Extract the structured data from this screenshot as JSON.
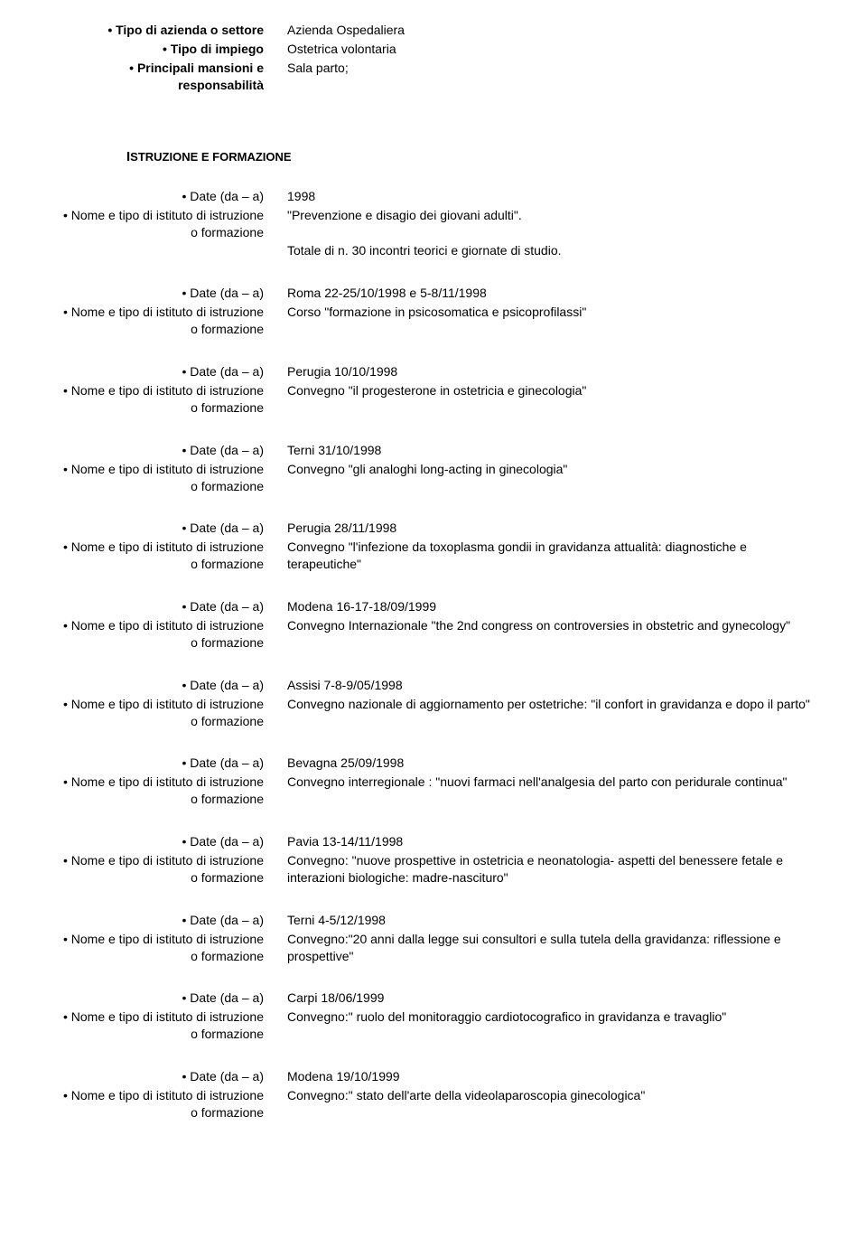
{
  "top": {
    "r1_label": "• Tipo di azienda o settore",
    "r1_value": "Azienda Ospedaliera",
    "r2_label": "• Tipo di impiego",
    "r2_value": "Ostetrica volontaria",
    "r3_label": "• Principali mansioni e responsabilità",
    "r3_value": "Sala parto;"
  },
  "section": {
    "title_first": "I",
    "title_rest": "STRUZIONE E FORMAZIONE"
  },
  "labels": {
    "date": "• Date (da – a)",
    "inst": "• Nome e tipo di istituto di istruzione o formazione",
    "inst_alt": "• Nome e tipo di istituto di istruzione o formazione"
  },
  "entries": [
    {
      "date": "1998",
      "desc": "\"Prevenzione e disagio dei giovani adulti\".",
      "desc2": "Totale di n. 30 incontri teorici e giornate di studio."
    },
    {
      "date": "Roma 22-25/10/1998 e 5-8/11/1998",
      "desc": "Corso \"formazione in psicosomatica e psicoprofilassi\""
    },
    {
      "date": "Perugia 10/10/1998",
      "desc": "Convegno \"il progesterone in ostetricia e ginecologia\""
    },
    {
      "date": "Terni 31/10/1998",
      "desc": "Convegno \"gli analoghi long-acting in ginecologia\""
    },
    {
      "date": "Perugia 28/11/1998",
      "desc": "Convegno \"l'infezione da toxoplasma gondii in gravidanza attualità: diagnostiche e terapeutiche\""
    },
    {
      "date": "Modena 16-17-18/09/1999",
      "desc": "Convegno Internazionale \"the 2nd congress on controversies in obstetric and gynecology\""
    },
    {
      "date": "Assisi 7-8-9/05/1998",
      "desc": "Convegno nazionale di aggiornamento per ostetriche: \"il confort in gravidanza e dopo il parto\""
    },
    {
      "date": "Bevagna 25/09/1998",
      "desc": "Convegno interregionale : \"nuovi farmaci nell'analgesia del parto con peridurale continua\""
    },
    {
      "date": "Pavia 13-14/11/1998",
      "desc": "Convegno: \"nuove prospettive in ostetricia e neonatologia- aspetti del benessere fetale e interazioni biologiche: madre-nascituro\""
    },
    {
      "date": "Terni 4-5/12/1998",
      "desc": "Convegno:\"20 anni dalla legge sui consultori e sulla tutela della gravidanza: riflessione e prospettive\""
    },
    {
      "date": "Carpi 18/06/1999",
      "desc": "Convegno:\" ruolo del monitoraggio cardiotocografico in gravidanza e travaglio\""
    },
    {
      "date": "Modena 19/10/1999",
      "desc": "Convegno:\" stato dell'arte della videolaparoscopia ginecologica\""
    }
  ]
}
